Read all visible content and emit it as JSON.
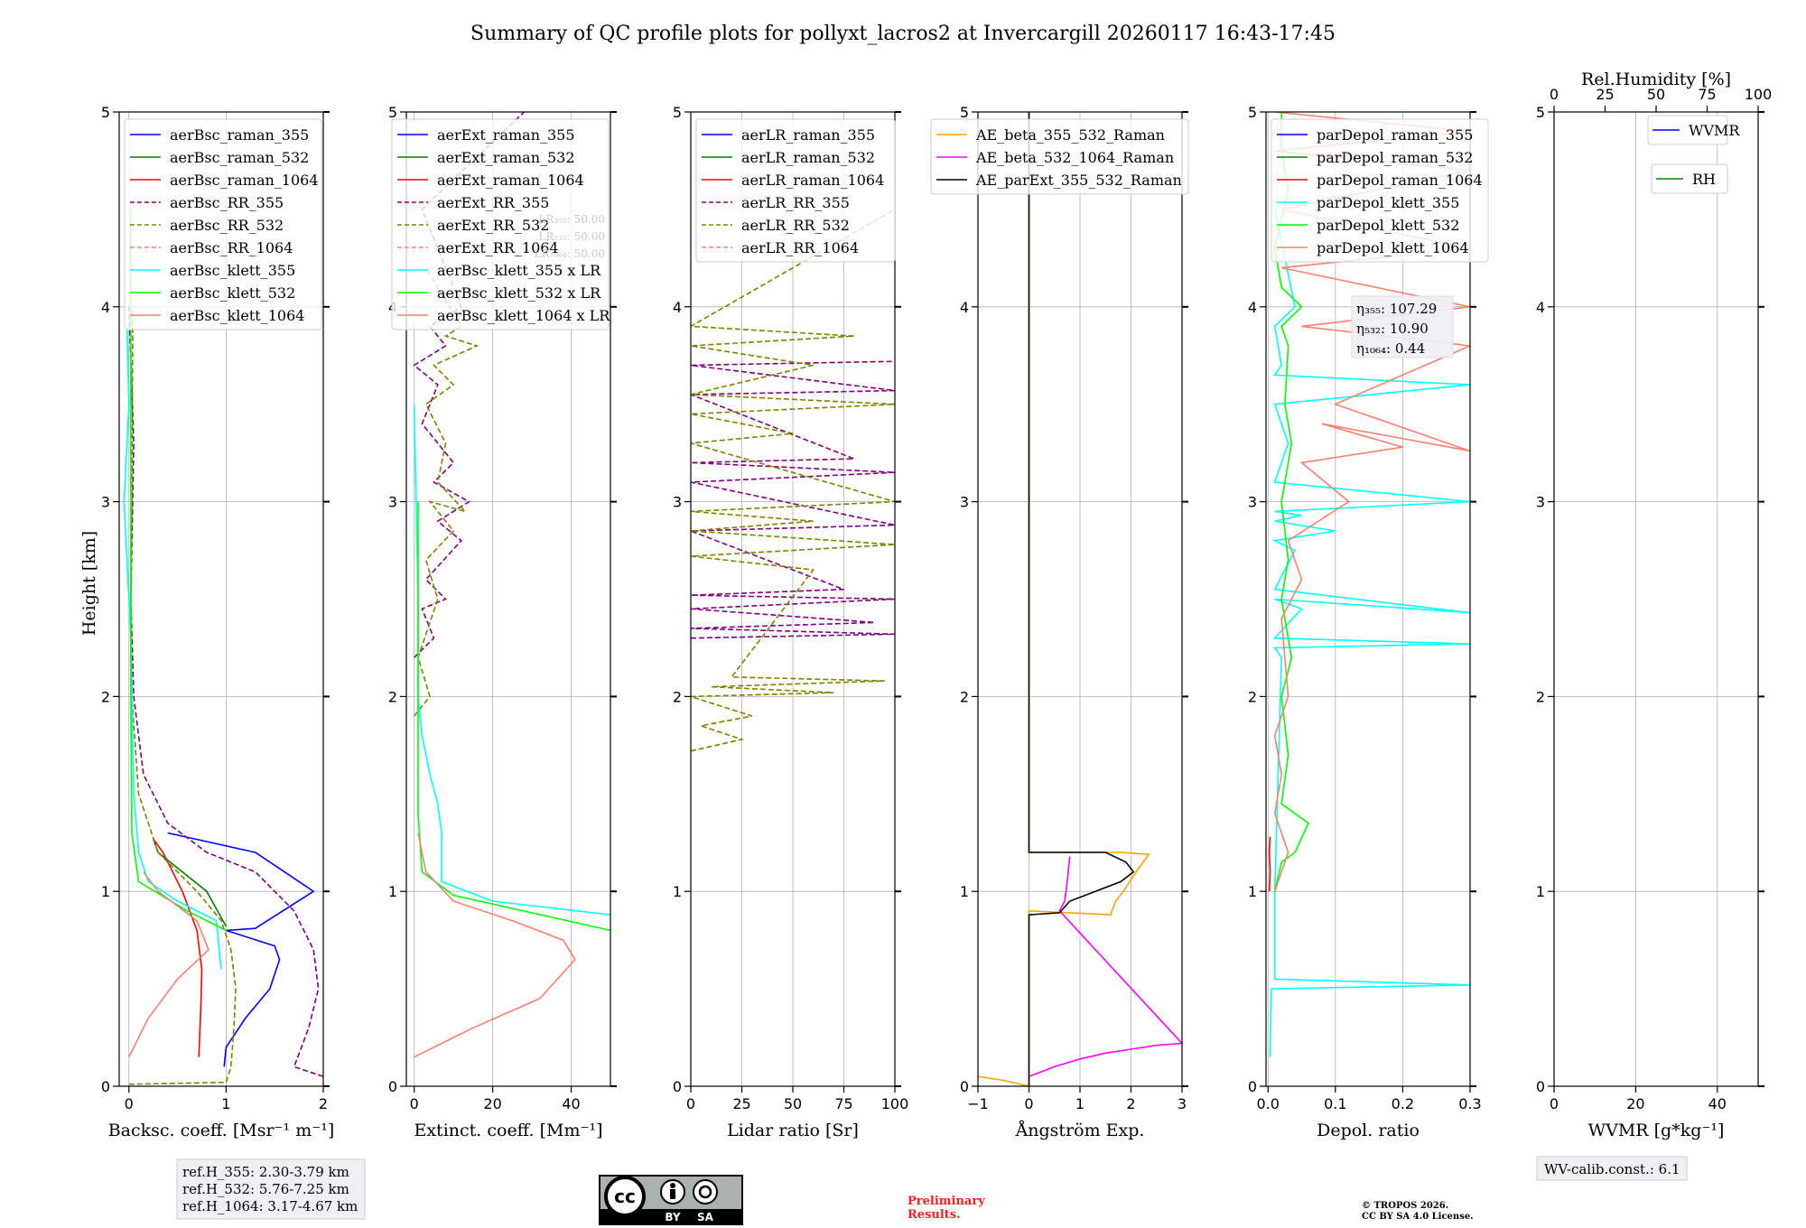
{
  "title": "Summary of QC profile plots for pollyxt_lacros2 at Invercargill 20260117 16:43-17:45",
  "ylabel": "Height [km]",
  "ref_heights": [
    "ref.H_355: 2.30-3.79 km",
    "ref.H_532: 5.76-7.25 km",
    "ref.H_1064: 3.17-4.67 km"
  ],
  "license_badge": {
    "cc": "cc",
    "by": "BY",
    "sa": "SA"
  },
  "preliminary": [
    "Preliminary",
    "Results."
  ],
  "copyright": [
    "© TROPOS 2026.",
    "CC BY SA 4.0 License."
  ],
  "wv_calib": "WV-calib.const.: 6.1",
  "colors": {
    "blue": "#0000ff",
    "green": "#008000",
    "red": "#ff0000",
    "purple": "#800080",
    "olive": "#808000",
    "salmon": "#fa8072",
    "cyan": "#00ffff",
    "lime": "#00ff00",
    "orange": "#ffa500",
    "magenta": "#ff00ff",
    "black": "#000000"
  },
  "chart_data": [
    {
      "type": "line",
      "id": "backscatter",
      "xlabel": "Backsc. coeff. [Msr⁻¹ m⁻¹]",
      "xlim": [
        -0.1,
        2
      ],
      "xticks": [
        0,
        1,
        2
      ],
      "ylim": [
        0,
        5
      ],
      "yticks": [
        0,
        1,
        2,
        3,
        4,
        5
      ],
      "legend": "top-left",
      "series": [
        {
          "name": "aerBsc_raman_355",
          "color": "blue",
          "style": "solid",
          "x": [
            0.98,
            1.0,
            1.2,
            1.45,
            1.55,
            1.5,
            1.0,
            1.3,
            1.9,
            1.6,
            1.3,
            0.4
          ],
          "y": [
            0.1,
            0.2,
            0.35,
            0.5,
            0.65,
            0.72,
            0.8,
            0.81,
            1.0,
            1.1,
            1.2,
            1.3
          ]
        },
        {
          "name": "aerBsc_raman_532",
          "color": "green",
          "style": "solid",
          "x": [
            1.0,
            0.8,
            0.55,
            0.3,
            0.25
          ],
          "y": [
            0.82,
            1.0,
            1.1,
            1.2,
            1.27
          ]
        },
        {
          "name": "aerBsc_raman_1064",
          "color": "red",
          "style": "solid",
          "x": [
            0.72,
            0.74,
            0.75,
            0.7,
            0.55,
            0.35,
            0.25
          ],
          "y": [
            0.15,
            0.4,
            0.6,
            0.8,
            1.0,
            1.2,
            1.27
          ]
        },
        {
          "name": "aerBsc_RR_355",
          "color": "purple",
          "style": "dashed",
          "x": [
            2.0,
            1.7,
            1.85,
            1.95,
            1.9,
            1.7,
            1.3,
            0.8,
            0.4,
            0.15,
            0.05,
            0.02,
            0.05,
            0.0
          ],
          "y": [
            0.05,
            0.1,
            0.3,
            0.5,
            0.7,
            0.9,
            1.1,
            1.2,
            1.35,
            1.6,
            2.0,
            2.5,
            3.3,
            4.0
          ]
        },
        {
          "name": "aerBsc_RR_532",
          "color": "olive",
          "style": "dashed",
          "x": [
            0.0,
            1.0,
            1.05,
            1.08,
            1.1,
            1.05,
            0.95,
            0.7,
            0.3,
            0.1,
            0.03,
            0.02,
            0.03,
            0.04
          ],
          "y": [
            0.01,
            0.02,
            0.1,
            0.3,
            0.5,
            0.7,
            0.85,
            1.0,
            1.2,
            1.5,
            2.0,
            2.5,
            3.0,
            4.0
          ]
        },
        {
          "name": "aerBsc_RR_1064",
          "color": "salmon",
          "style": "dashed",
          "x": [],
          "y": []
        },
        {
          "name": "aerBsc_klett_355",
          "color": "cyan",
          "style": "solid",
          "x": [
            0.95,
            0.9,
            0.5,
            0.2,
            0.1,
            0.05,
            0.03,
            0.02,
            0.0,
            -0.05,
            0.0,
            -0.02
          ],
          "y": [
            0.6,
            0.85,
            0.95,
            1.05,
            1.2,
            1.5,
            2.0,
            2.3,
            2.5,
            3.0,
            3.5,
            3.9
          ]
        },
        {
          "name": "aerBsc_klett_532",
          "color": "lime",
          "style": "solid",
          "x": [
            1.0,
            0.6,
            0.1,
            0.03,
            0.02,
            0.02,
            0.02,
            0.02
          ],
          "y": [
            0.8,
            0.9,
            1.05,
            1.3,
            2.0,
            3.0,
            4.0,
            4.5
          ]
        },
        {
          "name": "aerBsc_klett_1064",
          "color": "salmon",
          "style": "solid",
          "x": [
            0.0,
            0.2,
            0.5,
            0.82,
            0.7,
            0.3,
            0.15
          ],
          "y": [
            0.15,
            0.35,
            0.55,
            0.7,
            0.85,
            1.0,
            1.1
          ]
        }
      ]
    },
    {
      "type": "line",
      "id": "extinction",
      "xlabel": "Extinct. coeff. [Mm⁻¹]",
      "xlim": [
        -2,
        50
      ],
      "xticks": [
        0,
        20,
        40
      ],
      "ylim": [
        0,
        5
      ],
      "yticks": [
        0,
        1,
        2,
        3,
        4,
        5
      ],
      "legend": "top-left",
      "lr_notes": [
        "LR₃₅₅: 50.00",
        "LR₅₃₂: 50.00",
        "LR₁₀₆₄: 50.00"
      ],
      "series": [
        {
          "name": "aerExt_raman_355",
          "color": "blue",
          "style": "solid",
          "x": [],
          "y": []
        },
        {
          "name": "aerExt_raman_532",
          "color": "green",
          "style": "solid",
          "x": [],
          "y": []
        },
        {
          "name": "aerExt_raman_1064",
          "color": "red",
          "style": "solid",
          "x": [],
          "y": []
        },
        {
          "name": "aerExt_RR_355",
          "color": "purple",
          "style": "dashed",
          "x": [
            0,
            5,
            2,
            8,
            3,
            12,
            6,
            14,
            5,
            10,
            2,
            6,
            0,
            8,
            4,
            12,
            2,
            28
          ],
          "y": [
            2.2,
            2.3,
            2.45,
            2.5,
            2.6,
            2.8,
            2.9,
            3.0,
            3.1,
            3.2,
            3.4,
            3.6,
            3.7,
            3.8,
            3.9,
            4.0,
            4.5,
            5.0
          ]
        },
        {
          "name": "aerExt_RR_532",
          "color": "olive",
          "style": "dashed",
          "x": [
            0,
            4,
            1,
            6,
            3,
            10,
            4,
            13,
            6,
            8,
            3,
            10,
            5,
            16,
            8,
            12,
            3
          ],
          "y": [
            1.9,
            2.0,
            2.2,
            2.5,
            2.7,
            2.85,
            3.0,
            2.95,
            3.1,
            3.3,
            3.5,
            3.6,
            3.7,
            3.8,
            3.85,
            3.9,
            4.2
          ]
        },
        {
          "name": "aerExt_RR_1064",
          "color": "salmon",
          "style": "dashed",
          "x": [],
          "y": []
        },
        {
          "name": "aerBsc_klett_355 x LR",
          "color": "cyan",
          "style": "solid",
          "x": [
            50,
            20,
            7,
            7,
            6,
            4,
            2,
            1,
            1,
            0
          ],
          "y": [
            0.88,
            0.95,
            1.05,
            1.3,
            1.45,
            1.6,
            1.8,
            2.0,
            2.5,
            3.5
          ]
        },
        {
          "name": "aerBsc_klett_532 x LR",
          "color": "lime",
          "style": "solid",
          "x": [
            50,
            10,
            2,
            1,
            1,
            1
          ],
          "y": [
            0.8,
            0.98,
            1.1,
            1.4,
            2.0,
            3.0
          ]
        },
        {
          "name": "aerBsc_klett_1064 x LR",
          "color": "salmon",
          "style": "solid",
          "x": [
            0,
            15,
            32,
            41,
            38,
            25,
            10,
            3,
            1
          ],
          "y": [
            0.15,
            0.3,
            0.45,
            0.65,
            0.75,
            0.85,
            0.95,
            1.1,
            1.3
          ]
        }
      ]
    },
    {
      "type": "line",
      "id": "lidar_ratio",
      "xlabel": "Lidar ratio [Sr]",
      "xlim": [
        0,
        100
      ],
      "xticks": [
        0,
        25,
        50,
        75,
        100
      ],
      "ylim": [
        0,
        5
      ],
      "yticks": [
        0,
        1,
        2,
        3,
        4,
        5
      ],
      "legend": "top-left",
      "series": [
        {
          "name": "aerLR_raman_355",
          "color": "blue",
          "style": "solid",
          "x": [],
          "y": []
        },
        {
          "name": "aerLR_raman_532",
          "color": "green",
          "style": "solid",
          "x": [],
          "y": []
        },
        {
          "name": "aerLR_raman_1064",
          "color": "red",
          "style": "solid",
          "x": [],
          "y": []
        },
        {
          "name": "aerLR_RR_355",
          "color": "purple",
          "style": "dashed",
          "x": [
            0,
            100,
            0,
            90,
            0,
            100,
            0,
            75,
            0,
            100,
            0,
            100,
            0,
            80,
            0,
            100,
            0,
            100
          ],
          "y": [
            2.3,
            2.32,
            2.35,
            2.38,
            2.45,
            2.5,
            2.52,
            2.55,
            2.85,
            2.88,
            3.1,
            3.15,
            3.2,
            3.22,
            3.55,
            3.57,
            3.7,
            3.72
          ]
        },
        {
          "name": "aerLR_RR_532",
          "color": "olive",
          "style": "dashed",
          "x": [
            0,
            25,
            5,
            30,
            0,
            70,
            10,
            95,
            20,
            60,
            0,
            100,
            0,
            60,
            0,
            100,
            0,
            50,
            0,
            100,
            0,
            60,
            0,
            80,
            0,
            100
          ],
          "y": [
            1.72,
            1.78,
            1.85,
            1.9,
            2.0,
            2.02,
            2.05,
            2.08,
            2.1,
            2.65,
            2.72,
            2.78,
            2.85,
            2.9,
            2.95,
            3.0,
            3.3,
            3.35,
            3.45,
            3.5,
            3.55,
            3.7,
            3.8,
            3.85,
            3.9,
            4.5
          ]
        },
        {
          "name": "aerLR_RR_1064",
          "color": "salmon",
          "style": "dashed",
          "x": [],
          "y": []
        }
      ]
    },
    {
      "type": "line",
      "id": "angstrom",
      "xlabel": "Ångström Exp.",
      "xlim": [
        -1,
        3
      ],
      "xticks": [
        -1,
        0,
        1,
        2,
        3
      ],
      "ylim": [
        0,
        5
      ],
      "yticks": [
        0,
        1,
        2,
        3,
        4,
        5
      ],
      "legend": "top-left",
      "series": [
        {
          "name": "AE_beta_355_532_Raman",
          "color": "orange",
          "style": "solid",
          "x": [
            -1,
            -0.5,
            0,
            0.0,
            1.6,
            1.7,
            1.85,
            2.1,
            2.35,
            1.8,
            1.4,
            0.0,
            0.0
          ],
          "y": [
            0.05,
            0.03,
            0.0,
            0.9,
            0.88,
            0.95,
            1.0,
            1.1,
            1.19,
            1.2,
            1.2,
            1.2,
            5.0
          ]
        },
        {
          "name": "AE_beta_532_1064_Raman",
          "color": "magenta",
          "style": "solid",
          "x": [
            0,
            0.5,
            1.0,
            1.5,
            2.0,
            2.5,
            3.0,
            0.6,
            0.7,
            0.75,
            0.8
          ],
          "y": [
            0.05,
            0.1,
            0.14,
            0.17,
            0.19,
            0.21,
            0.22,
            0.9,
            0.95,
            1.05,
            1.18
          ]
        },
        {
          "name": "AE_parExt_355_532_Raman",
          "color": "black",
          "style": "solid",
          "x": [
            0,
            0.0,
            0.6,
            0.8,
            1.3,
            1.8,
            2.05,
            1.9,
            1.5,
            0.0,
            0.0
          ],
          "y": [
            0.0,
            0.88,
            0.89,
            0.95,
            1.0,
            1.05,
            1.1,
            1.15,
            1.2,
            1.2,
            5.0
          ]
        }
      ]
    },
    {
      "type": "line",
      "id": "depol",
      "xlabel": "Depol. ratio",
      "xlim": [
        -0.003,
        0.3
      ],
      "xticks": [
        0.0,
        0.1,
        0.2,
        0.3
      ],
      "xticklabels": [
        "0.0",
        "0.1",
        "0.2",
        "0.3"
      ],
      "ylim": [
        0,
        5
      ],
      "yticks": [
        0,
        1,
        2,
        3,
        4,
        5
      ],
      "legend": "top-left",
      "eta_notes": [
        "η₃₅₅: 107.29",
        "η₅₃₂: 10.90",
        "η₁₀₆₄: 0.44"
      ],
      "series": [
        {
          "name": "parDepol_raman_355",
          "color": "blue",
          "style": "solid",
          "x": [],
          "y": []
        },
        {
          "name": "parDepol_raman_532",
          "color": "green",
          "style": "solid",
          "x": [],
          "y": []
        },
        {
          "name": "parDepol_raman_1064",
          "color": "red",
          "style": "solid",
          "x": [
            0.002,
            0.003,
            0.002,
            0.003
          ],
          "y": [
            1.0,
            1.1,
            1.2,
            1.28
          ]
        },
        {
          "name": "parDepol_klett_355",
          "color": "cyan",
          "style": "solid",
          "x": [
            0.003,
            0.005,
            0.3,
            0.01,
            0.01,
            0.02,
            0.01,
            0.3,
            0.01,
            0.05,
            0.01,
            0.3,
            0.01,
            0.04,
            0.01,
            0.1,
            0.01,
            0.05,
            0.01,
            0.3,
            0.01,
            0.03,
            0.01,
            0.3,
            0.01,
            0.02,
            0.01,
            0.04,
            0.01
          ],
          "y": [
            0.15,
            0.5,
            0.52,
            0.55,
            1.0,
            2.2,
            2.25,
            2.27,
            2.3,
            2.45,
            2.5,
            2.43,
            2.55,
            2.75,
            2.8,
            2.85,
            2.9,
            2.93,
            2.95,
            3.0,
            3.1,
            3.3,
            3.5,
            3.6,
            3.65,
            3.7,
            3.9,
            4.0,
            4.5
          ]
        },
        {
          "name": "parDepol_klett_532",
          "color": "lime",
          "style": "solid",
          "x": [
            0.01,
            0.02,
            0.04,
            0.06,
            0.02,
            0.03,
            0.02,
            0.035,
            0.02,
            0.03,
            0.02,
            0.035,
            0.025,
            0.03,
            0.02,
            0.05,
            0.02,
            0.01,
            0.03,
            0.02,
            0.02
          ],
          "y": [
            1.0,
            1.15,
            1.2,
            1.35,
            1.45,
            1.7,
            2.0,
            2.2,
            2.5,
            2.7,
            3.0,
            3.3,
            3.5,
            3.8,
            3.9,
            4.0,
            4.1,
            4.3,
            4.6,
            4.8,
            5.0
          ]
        },
        {
          "name": "parDepol_klett_1064",
          "color": "salmon",
          "style": "solid",
          "x": [
            0.01,
            0.03,
            0.01,
            0.02,
            0.01,
            0.03,
            0.02,
            0.05,
            0.03,
            0.12,
            0.05,
            0.2,
            0.08,
            0.3,
            0.1,
            0.3,
            0.05,
            0.3,
            0.02,
            0.3,
            0.02,
            0.3,
            0.01,
            0.3,
            0.01
          ],
          "y": [
            1.0,
            1.2,
            1.4,
            1.6,
            1.8,
            2.0,
            2.4,
            2.6,
            2.8,
            3.0,
            3.2,
            3.28,
            3.4,
            3.26,
            3.5,
            3.8,
            3.9,
            4.0,
            4.2,
            4.3,
            4.5,
            4.7,
            4.8,
            4.9,
            5.0
          ]
        }
      ]
    },
    {
      "type": "line",
      "id": "wvmr",
      "xlabel": "WVMR [g*kg⁻¹]",
      "xlim": [
        0,
        50
      ],
      "xticks": [
        0,
        20,
        40
      ],
      "ylim": [
        0,
        5
      ],
      "yticks": [
        0,
        1,
        2,
        3,
        4,
        5
      ],
      "top_xlabel": "Rel.Humidity [%]",
      "top_xlim": [
        0,
        100
      ],
      "top_xticks": [
        0,
        25,
        50,
        75,
        100
      ],
      "legend": "top-right",
      "series": [
        {
          "name": "WVMR",
          "color": "blue",
          "style": "solid",
          "x": [],
          "y": []
        },
        {
          "name": "RH",
          "color": "green",
          "style": "solid",
          "x": [],
          "y": []
        }
      ]
    }
  ]
}
